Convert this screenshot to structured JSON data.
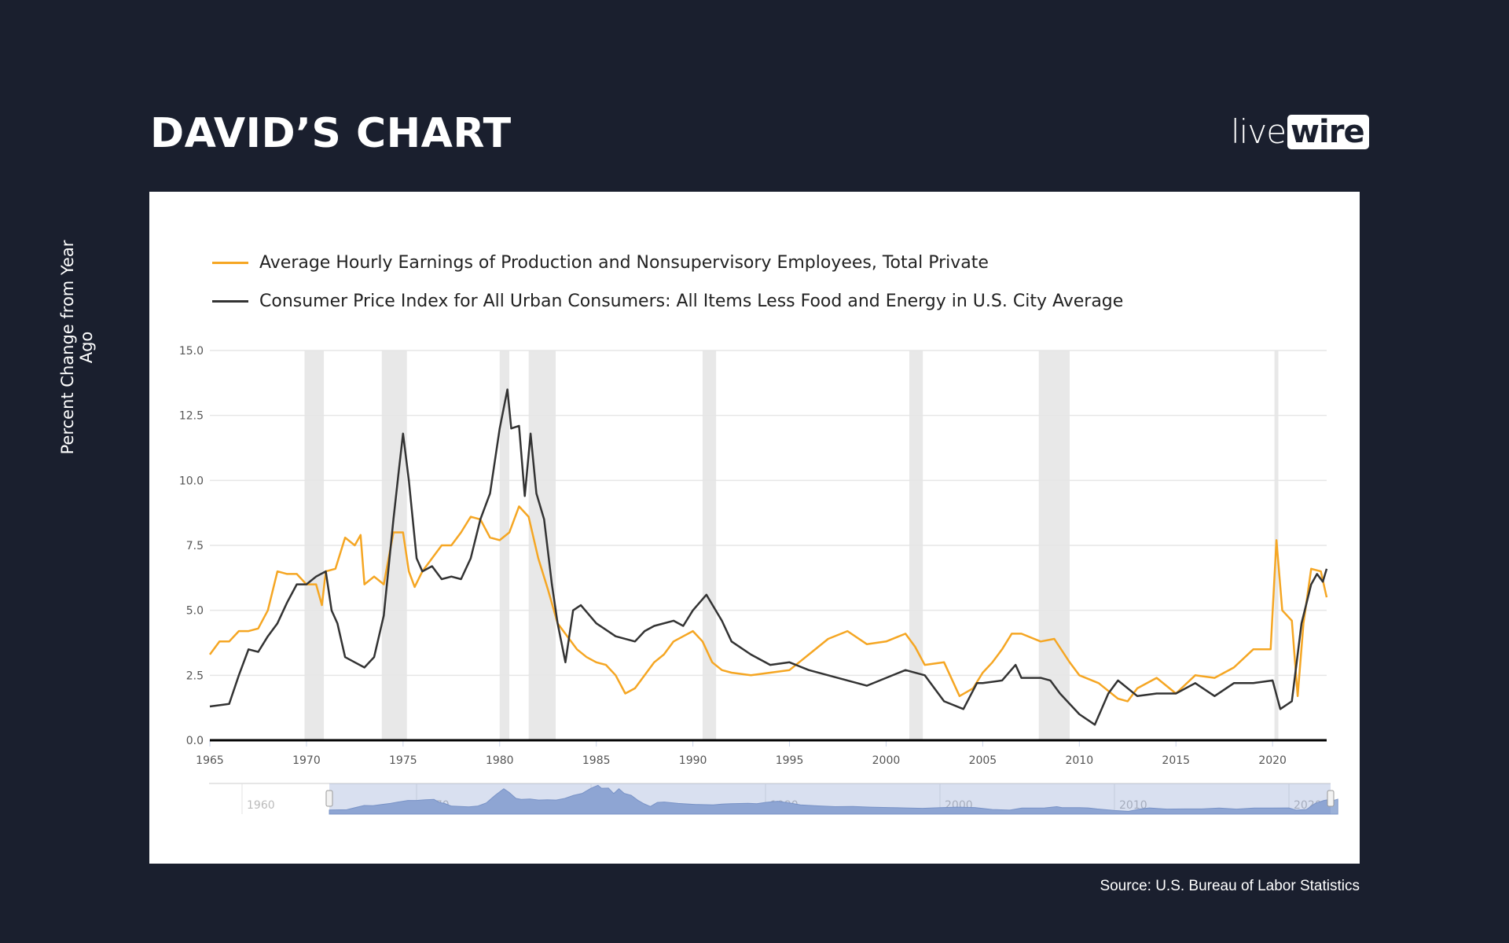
{
  "header": {
    "title": "DAVID’S CHART",
    "logo_text": "livewire",
    "logo_parts": [
      "live",
      "wire"
    ]
  },
  "source": "Source: U.S. Bureau of Labor Statistics",
  "colors": {
    "background": "#1a1f2e",
    "wages": "#f5a623",
    "cpi": "#333333",
    "recession": "#e8e8e8",
    "navigator_fill": "#9bb1d8"
  },
  "chart_data": {
    "type": "line",
    "title": "",
    "xlabel": "",
    "ylabel": "Percent Change from Year Ago",
    "xlim": [
      1965,
      2022.8
    ],
    "ylim": [
      0,
      15
    ],
    "yticks": [
      "0.0",
      "2.5",
      "5.0",
      "7.5",
      "10.0",
      "12.5",
      "15.0"
    ],
    "xticks": [
      "1965",
      "1970",
      "1975",
      "1980",
      "1985",
      "1990",
      "1995",
      "2000",
      "2005",
      "2010",
      "2015",
      "2020"
    ],
    "grid": true,
    "legend_position": "top-left",
    "recessions": [
      [
        1969.9,
        1970.9
      ],
      [
        1973.9,
        1975.2
      ],
      [
        1980.0,
        1980.5
      ],
      [
        1981.5,
        1982.9
      ],
      [
        1990.5,
        1991.2
      ],
      [
        2001.2,
        2001.9
      ],
      [
        2007.9,
        2009.5
      ],
      [
        2020.1,
        2020.3
      ]
    ],
    "series": [
      {
        "name": "Average Hourly Earnings of Production and Nonsupervisory Employees, Total Private",
        "color": "#f5a623",
        "x": [
          1965,
          1965.5,
          1966,
          1966.5,
          1967,
          1967.5,
          1968,
          1968.5,
          1969,
          1969.5,
          1970,
          1970.5,
          1970.8,
          1971,
          1971.5,
          1972,
          1972.5,
          1972.8,
          1973,
          1973.5,
          1974,
          1974.5,
          1975,
          1975.3,
          1975.6,
          1976,
          1976.5,
          1977,
          1977.5,
          1978,
          1978.5,
          1979,
          1979.5,
          1980,
          1980.5,
          1981,
          1981.5,
          1982,
          1982.5,
          1983,
          1983.5,
          1984,
          1984.5,
          1985,
          1985.5,
          1986,
          1986.5,
          1987,
          1987.5,
          1988,
          1988.5,
          1989,
          1989.5,
          1990,
          1990.5,
          1991,
          1991.5,
          1992,
          1993,
          1994,
          1995,
          1996,
          1997,
          1998,
          1999,
          2000,
          2001,
          2001.5,
          2002,
          2003,
          2003.8,
          2004.5,
          2005,
          2005.5,
          2006,
          2006.5,
          2007,
          2008,
          2008.7,
          2009.5,
          2010,
          2011,
          2012,
          2012.5,
          2013,
          2014,
          2015,
          2016,
          2017,
          2018,
          2019,
          2019.9,
          2020.2,
          2020.5,
          2021,
          2021.3,
          2021.6,
          2022,
          2022.5,
          2022.8
        ],
        "y": [
          3.3,
          3.8,
          3.8,
          4.2,
          4.2,
          4.3,
          5.0,
          6.5,
          6.4,
          6.4,
          6.0,
          6.0,
          5.2,
          6.5,
          6.6,
          7.8,
          7.5,
          7.9,
          6.0,
          6.3,
          6.0,
          8.0,
          8.0,
          6.5,
          5.9,
          6.5,
          7.0,
          7.5,
          7.5,
          8.0,
          8.6,
          8.5,
          7.8,
          7.7,
          8.0,
          9.0,
          8.6,
          7.0,
          5.8,
          4.5,
          4.0,
          3.5,
          3.2,
          3.0,
          2.9,
          2.5,
          1.8,
          2.0,
          2.5,
          3.0,
          3.3,
          3.8,
          4.0,
          4.2,
          3.8,
          3.0,
          2.7,
          2.6,
          2.5,
          2.6,
          2.7,
          3.3,
          3.9,
          4.2,
          3.7,
          3.8,
          4.1,
          3.6,
          2.9,
          3.0,
          1.7,
          2.0,
          2.6,
          3.0,
          3.5,
          4.1,
          4.1,
          3.8,
          3.9,
          3.0,
          2.5,
          2.2,
          1.6,
          1.5,
          2.0,
          2.4,
          1.8,
          2.5,
          2.4,
          2.8,
          3.5,
          3.5,
          7.7,
          5.0,
          4.6,
          1.7,
          4.5,
          6.6,
          6.5,
          5.5
        ]
      },
      {
        "name": "Consumer Price Index for All Urban Consumers: All Items Less Food and Energy in U.S. City Average",
        "color": "#333333",
        "x": [
          1965,
          1966,
          1966.5,
          1967,
          1967.5,
          1968,
          1968.5,
          1969,
          1969.5,
          1970,
          1970.5,
          1971,
          1971.3,
          1971.6,
          1972,
          1972.5,
          1973,
          1973.5,
          1974,
          1974.5,
          1974.8,
          1975,
          1975.3,
          1975.7,
          1976,
          1976.5,
          1977,
          1977.5,
          1978,
          1978.5,
          1979,
          1979.5,
          1980,
          1980.4,
          1980.6,
          1981,
          1981.3,
          1981.6,
          1981.9,
          1982.3,
          1982.7,
          1983,
          1983.4,
          1983.8,
          1984.2,
          1985,
          1986,
          1987,
          1987.5,
          1988,
          1989,
          1989.5,
          1990,
          1990.7,
          1991.5,
          1992,
          1993,
          1994,
          1995,
          1996,
          1997,
          1998,
          1999,
          2000,
          2001,
          2002,
          2003,
          2004,
          2004.7,
          2005,
          2006,
          2006.7,
          2007,
          2008,
          2008.5,
          2009,
          2010,
          2010.8,
          2011.5,
          2012,
          2013,
          2014,
          2015,
          2016,
          2017,
          2018,
          2019,
          2020,
          2020.4,
          2021,
          2021.5,
          2022,
          2022.3,
          2022.6,
          2022.8
        ],
        "y": [
          1.3,
          1.4,
          2.5,
          3.5,
          3.4,
          4.0,
          4.5,
          5.3,
          6.0,
          6.0,
          6.3,
          6.5,
          5.0,
          4.5,
          3.2,
          3.0,
          2.8,
          3.2,
          4.8,
          8.5,
          10.5,
          11.8,
          10.0,
          7.0,
          6.5,
          6.7,
          6.2,
          6.3,
          6.2,
          7.0,
          8.5,
          9.5,
          12.0,
          13.5,
          12.0,
          12.1,
          9.4,
          11.8,
          9.5,
          8.5,
          6.0,
          4.5,
          3.0,
          5.0,
          5.2,
          4.5,
          4.0,
          3.8,
          4.2,
          4.4,
          4.6,
          4.4,
          5.0,
          5.6,
          4.6,
          3.8,
          3.3,
          2.9,
          3.0,
          2.7,
          2.5,
          2.3,
          2.1,
          2.4,
          2.7,
          2.5,
          1.5,
          1.2,
          2.2,
          2.2,
          2.3,
          2.9,
          2.4,
          2.4,
          2.3,
          1.8,
          1.0,
          0.6,
          1.8,
          2.3,
          1.7,
          1.8,
          1.8,
          2.2,
          1.7,
          2.2,
          2.2,
          2.3,
          1.2,
          1.5,
          4.5,
          6.0,
          6.4,
          6.1,
          6.6
        ]
      }
    ],
    "navigator": {
      "xticks": [
        "1960",
        "1970",
        "1980",
        "1990",
        "2000",
        "2010",
        "2020"
      ],
      "range": [
        1965,
        2022.8
      ]
    }
  }
}
